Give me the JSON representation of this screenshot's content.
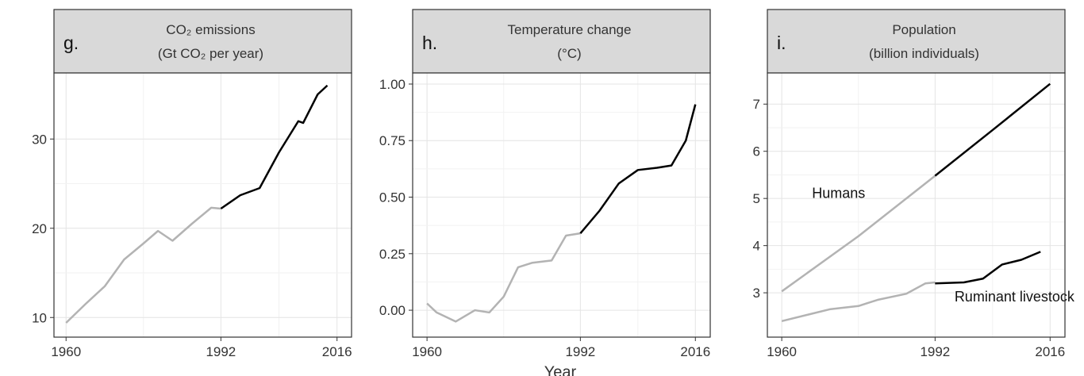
{
  "xlabel": "Year",
  "chart_data": [
    {
      "type": "line",
      "panel_label": "g.",
      "title": [
        "CO₂ emissions",
        "(Gt CO₂ per year)"
      ],
      "xlim": [
        1957.5,
        2019
      ],
      "ylim": [
        7.8,
        37.4
      ],
      "xticks": [
        1960,
        1992,
        2016
      ],
      "yticks": [
        10,
        20,
        30
      ],
      "grid": true,
      "series": [
        {
          "color": "#b3b3b3",
          "x": [
            1960,
            1964,
            1968,
            1972,
            1976,
            1979,
            1982,
            1986,
            1990,
            1992
          ],
          "values": [
            9.4,
            11.5,
            13.5,
            16.5,
            18.3,
            19.7,
            18.6,
            20.5,
            22.3,
            22.2
          ]
        },
        {
          "color": "#000000",
          "x": [
            1992,
            1996,
            2000,
            2004,
            2008,
            2009,
            2012,
            2014
          ],
          "values": [
            22.2,
            23.7,
            24.5,
            28.5,
            32,
            31.8,
            35,
            36
          ]
        }
      ]
    },
    {
      "type": "line",
      "panel_label": "h.",
      "title": [
        "Temperature change",
        "(°C)"
      ],
      "xlim": [
        1957,
        2019.1
      ],
      "ylim": [
        -0.119,
        1.049
      ],
      "xticks": [
        1960,
        1992,
        2016
      ],
      "yticks": [
        {
          "value": 0,
          "label": "0.00"
        },
        {
          "value": 0.25,
          "label": "0.25"
        },
        {
          "value": 0.5,
          "label": "0.50"
        },
        {
          "value": 0.75,
          "label": "0.75"
        },
        {
          "value": 1,
          "label": "1.00"
        }
      ],
      "grid": true,
      "series": [
        {
          "color": "#b3b3b3",
          "x": [
            1960,
            1962,
            1966,
            1970,
            1973,
            1976,
            1979,
            1982,
            1986,
            1989,
            1992
          ],
          "values": [
            0.03,
            -0.01,
            -0.05,
            0.0,
            -0.01,
            0.06,
            0.19,
            0.21,
            0.22,
            0.33,
            0.34
          ]
        },
        {
          "color": "#000000",
          "x": [
            1992,
            1996,
            2000,
            2004,
            2008,
            2011,
            2014,
            2016
          ],
          "values": [
            0.34,
            0.44,
            0.56,
            0.62,
            0.63,
            0.64,
            0.75,
            0.91
          ]
        }
      ]
    },
    {
      "type": "line",
      "panel_label": "i.",
      "title": [
        "Population",
        "(billion individuals)"
      ],
      "xlim": [
        1957,
        2019.1
      ],
      "ylim": [
        2.06,
        7.66
      ],
      "xticks": [
        1960,
        1992,
        2016
      ],
      "yticks": [
        3,
        4,
        5,
        6,
        7
      ],
      "grid": true,
      "series": [
        {
          "name": "Humans",
          "color": "#b3b3b3",
          "x": [
            1960,
            1976,
            1992
          ],
          "values": [
            3.03,
            4.2,
            5.48
          ]
        },
        {
          "color": "#000000",
          "x": [
            1992,
            2004,
            2016
          ],
          "values": [
            5.48,
            6.45,
            7.43
          ]
        },
        {
          "name": "Ruminant livestock",
          "color": "#b3b3b3",
          "x": [
            1960,
            1966,
            1970,
            1976,
            1980,
            1986,
            1990,
            1992
          ],
          "values": [
            2.4,
            2.55,
            2.65,
            2.72,
            2.85,
            2.98,
            3.2,
            3.22
          ]
        },
        {
          "color": "#000000",
          "x": [
            1992,
            1998,
            2002,
            2006,
            2010,
            2014
          ],
          "values": [
            3.2,
            3.22,
            3.3,
            3.6,
            3.7,
            3.87
          ]
        }
      ]
    }
  ]
}
